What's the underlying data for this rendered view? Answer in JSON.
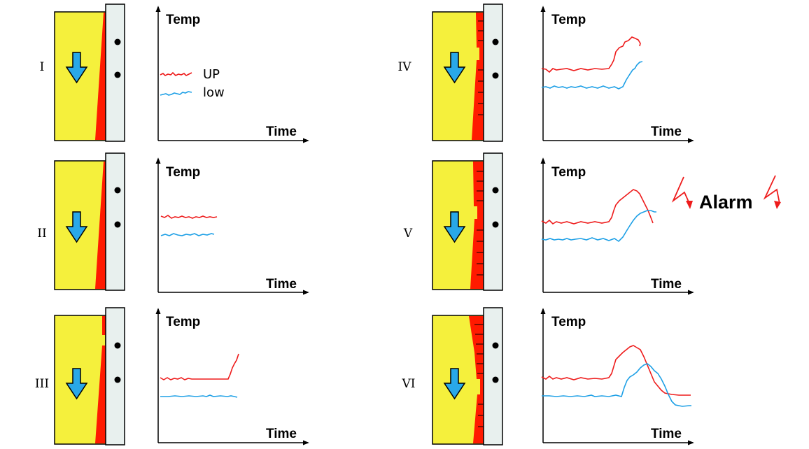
{
  "colors": {
    "material": "#f5f03c",
    "erosion": "#ff1a00",
    "wall": "#e8f0ee",
    "arrow": "#29a8e8",
    "up_line": "#ee1c1c",
    "low_line": "#1ea0e6",
    "alarm": "#ee1c1c"
  },
  "axis": {
    "y_label": "Temp",
    "x_label": "Time"
  },
  "legend": {
    "up_label": "UP",
    "low_label": "low"
  },
  "alarm": {
    "label": "Alarm",
    "icon": "lightning-bolt-icon"
  },
  "stages": [
    {
      "id": "stage-1",
      "label": "I",
      "stage": 1
    },
    {
      "id": "stage-2",
      "label": "II",
      "stage": 2
    },
    {
      "id": "stage-3",
      "label": "III",
      "stage": 3
    },
    {
      "id": "stage-4",
      "label": "IV",
      "stage": 4
    },
    {
      "id": "stage-5",
      "label": "V",
      "stage": 5
    },
    {
      "id": "stage-6",
      "label": "VI",
      "stage": 6
    }
  ]
}
